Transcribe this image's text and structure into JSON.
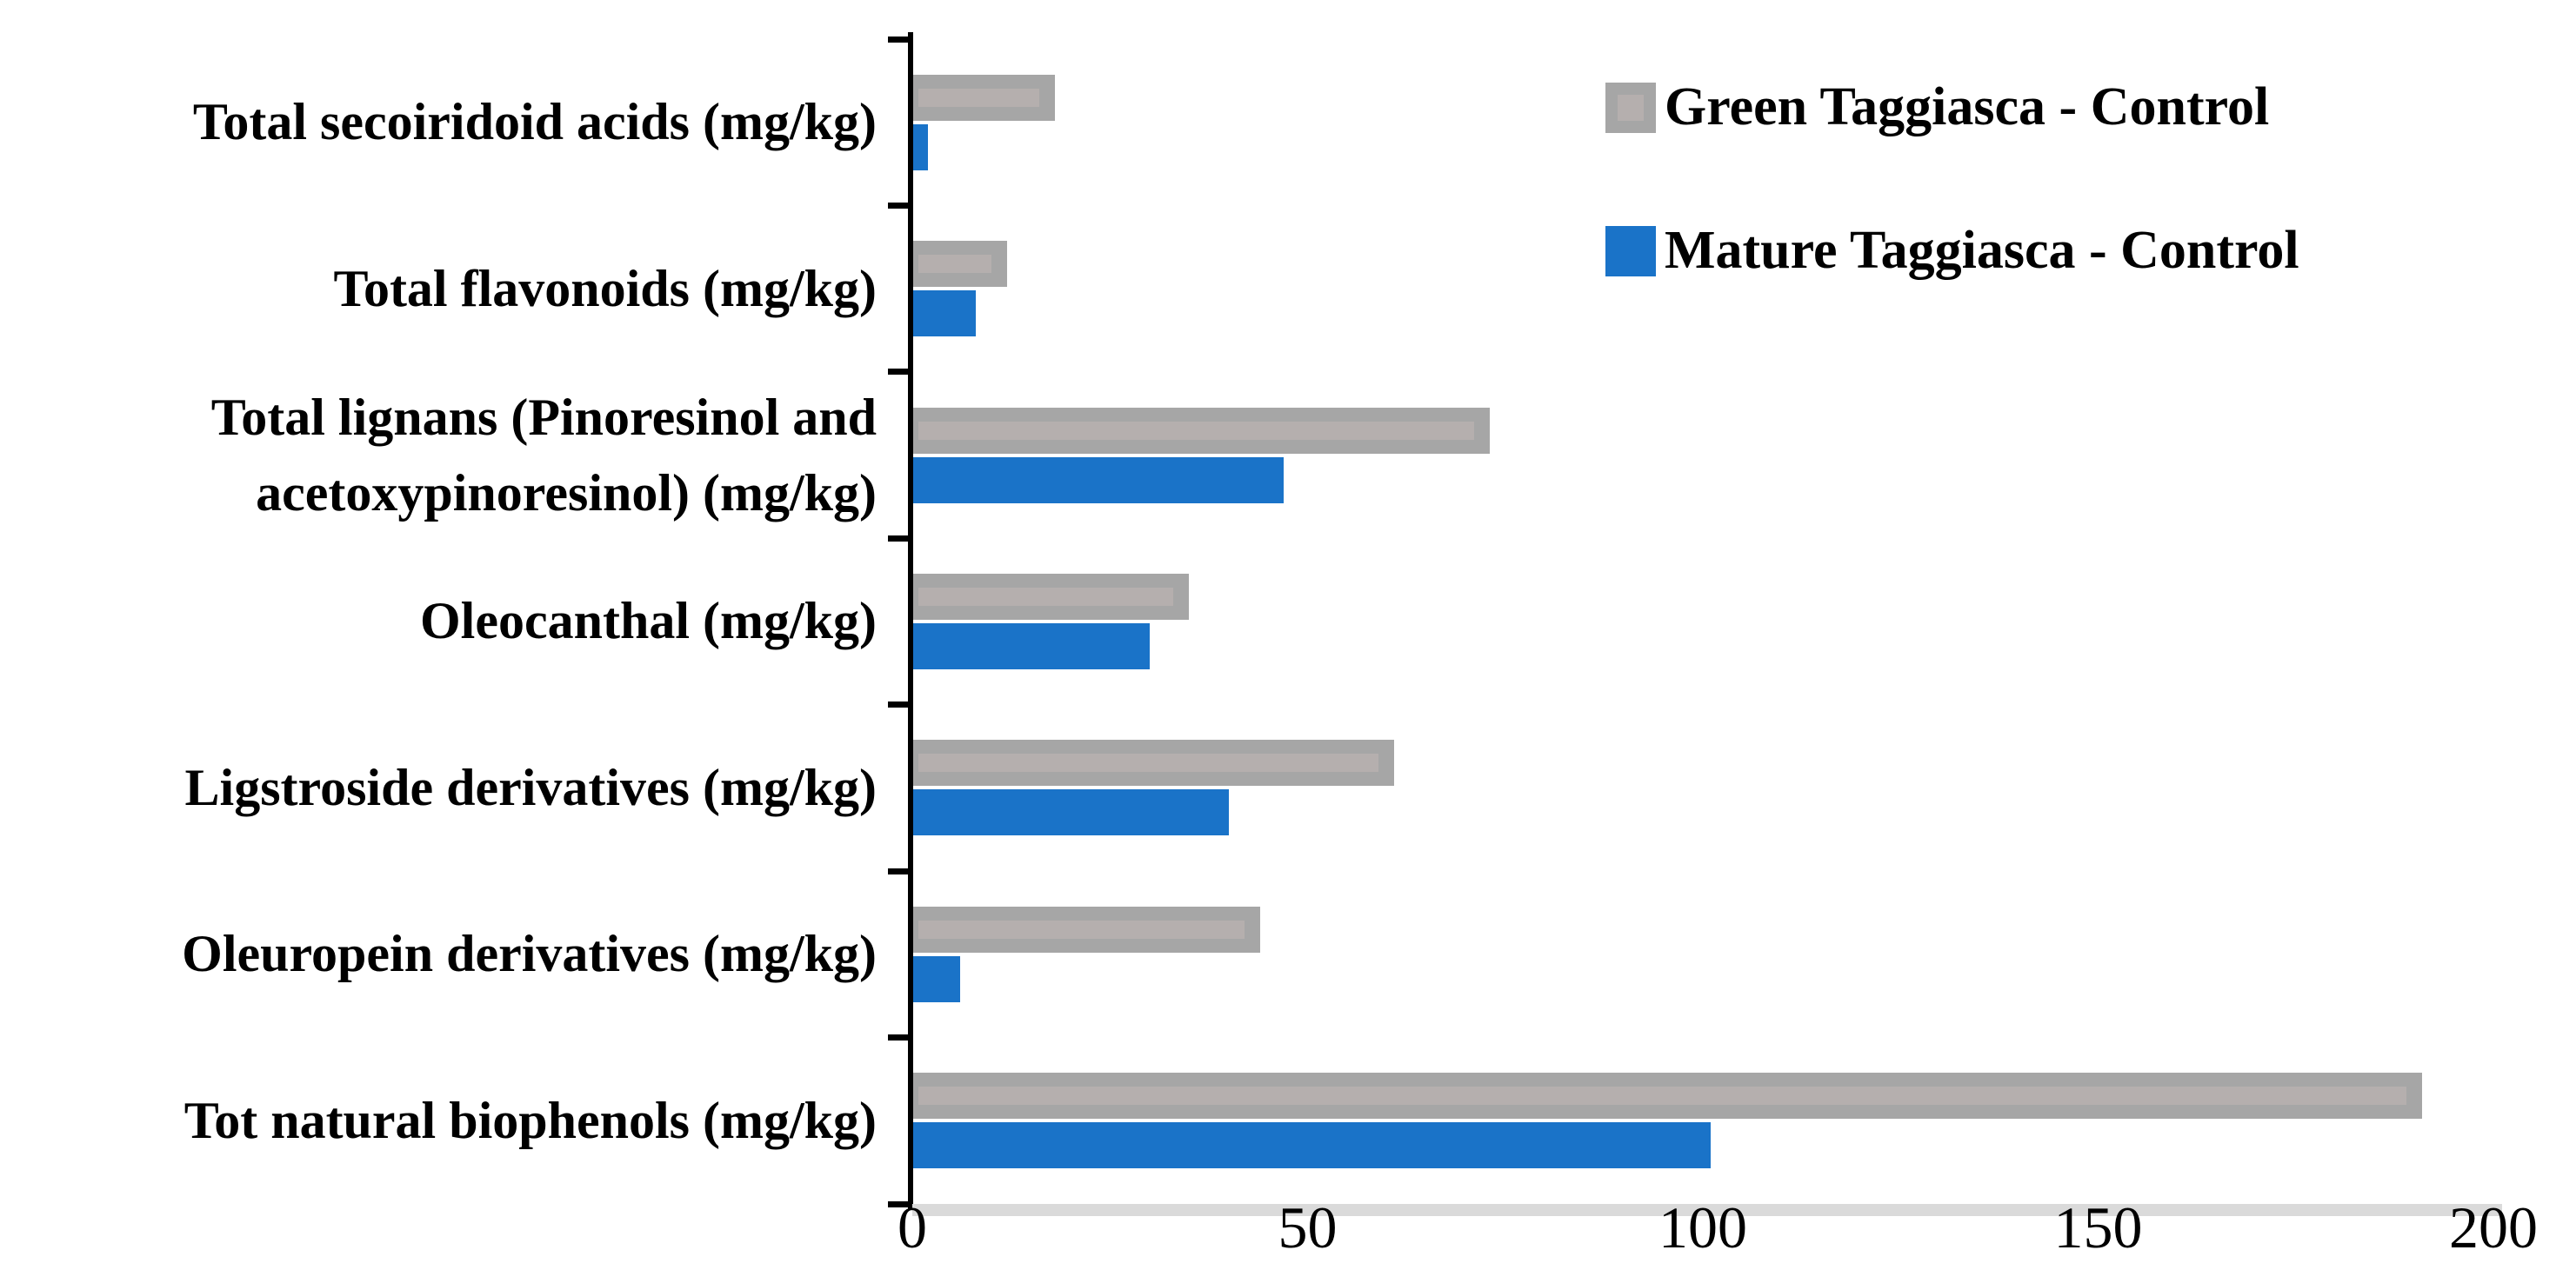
{
  "chart_data": {
    "type": "bar",
    "orientation": "horizontal",
    "title": "",
    "xlabel": "",
    "ylabel": "",
    "categories": [
      "Total secoiridoid acids (mg/kg)",
      "Total flavonoids (mg/kg)",
      "Total lignans (Pinoresinol and acetoxypinoresinol) (mg/kg)",
      "Oleocanthal (mg/kg)",
      "Ligstroside derivatives (mg/kg)",
      "Oleuropein derivatives (mg/kg)",
      "Tot natural biophenols (mg/kg)"
    ],
    "series": [
      {
        "name": "Green Taggiasca - Control",
        "color": "#a6a6a6",
        "highlight_color": "#b5afae",
        "values": [
          18,
          12,
          73,
          35,
          61,
          44,
          191
        ]
      },
      {
        "name": "Mature Taggiasca - Control",
        "color": "#1a73c8",
        "values": [
          2,
          8,
          47,
          30,
          40,
          6,
          101
        ]
      }
    ],
    "xlim": [
      0,
      200
    ],
    "x_ticks": [
      0,
      50,
      100,
      150,
      200
    ],
    "grid": false,
    "legend_position": "top-right",
    "axis_color": "#000000",
    "baseline_color": "#dadada"
  }
}
